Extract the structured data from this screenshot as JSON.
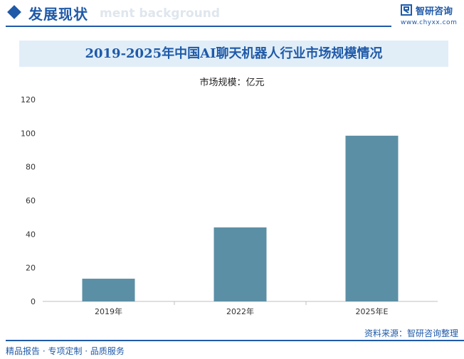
{
  "header": {
    "section_title": "发展现状",
    "watermark_text": "ment background",
    "brand_name": "智研咨询",
    "brand_url": "www.chyxx.com"
  },
  "chart_data": {
    "type": "bar",
    "title": "2019-2025年中国AI聊天机器人行业市场规模情况",
    "unit_label": "市场规模：亿元",
    "categories": [
      "2019年",
      "2022年",
      "2025年E"
    ],
    "values": [
      13.5,
      44,
      98.5
    ],
    "ylim": [
      0,
      120
    ],
    "yticks": [
      "0",
      "20",
      "40",
      "60",
      "80",
      "100",
      "120"
    ],
    "bar_color": "#5b8fa6",
    "grid": false,
    "xlabel": "",
    "ylabel": ""
  },
  "footer": {
    "source": "资料来源：智研咨询整理",
    "slogan": "精品报告 · 专项定制 · 品质服务"
  }
}
